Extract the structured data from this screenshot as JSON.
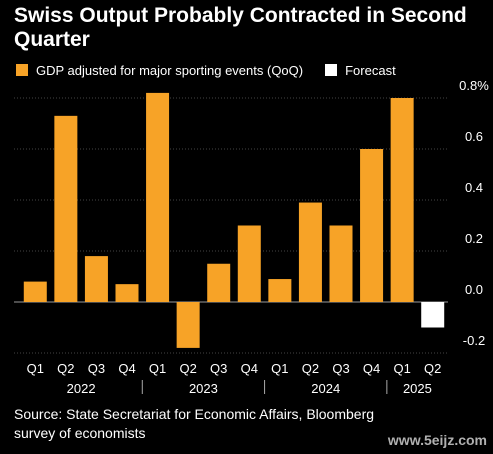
{
  "title": "Swiss Output Probably Contracted in Second Quarter",
  "legend": [
    {
      "label": "GDP adjusted for major sporting events (QoQ)",
      "color": "#f7a327"
    },
    {
      "label": "Forecast",
      "color": "#ffffff"
    }
  ],
  "source": "Source: State Secretariat for Economic Affairs, Bloomberg survey of economists",
  "watermark": "www.5eijz.com",
  "chart_data": {
    "type": "bar",
    "categories": [
      "Q1",
      "Q2",
      "Q3",
      "Q4",
      "Q1",
      "Q2",
      "Q3",
      "Q4",
      "Q1",
      "Q2",
      "Q3",
      "Q4",
      "Q1",
      "Q2"
    ],
    "years": [
      {
        "label": "2022",
        "start": 0,
        "end": 3
      },
      {
        "label": "2023",
        "start": 4,
        "end": 7
      },
      {
        "label": "2024",
        "start": 8,
        "end": 11
      },
      {
        "label": "2025",
        "start": 12,
        "end": 13
      }
    ],
    "series": [
      {
        "name": "GDP adjusted for major sporting events (QoQ)",
        "color": "#f7a327",
        "values": [
          0.08,
          0.73,
          0.18,
          0.07,
          0.82,
          -0.18,
          0.15,
          0.3,
          0.09,
          0.39,
          0.3,
          0.6,
          0.8,
          null
        ]
      },
      {
        "name": "Forecast",
        "color": "#ffffff",
        "values": [
          null,
          null,
          null,
          null,
          null,
          null,
          null,
          null,
          null,
          null,
          null,
          null,
          null,
          -0.1
        ]
      }
    ],
    "yticks": [
      {
        "value": 0.8,
        "label": "0.8%"
      },
      {
        "value": 0.6,
        "label": "0.6"
      },
      {
        "value": 0.4,
        "label": "0.4"
      },
      {
        "value": 0.2,
        "label": "0.2"
      },
      {
        "value": 0.0,
        "label": "0.0"
      },
      {
        "value": -0.2,
        "label": "-0.2"
      }
    ],
    "ylim": [
      -0.2,
      0.8
    ],
    "grid": true
  }
}
